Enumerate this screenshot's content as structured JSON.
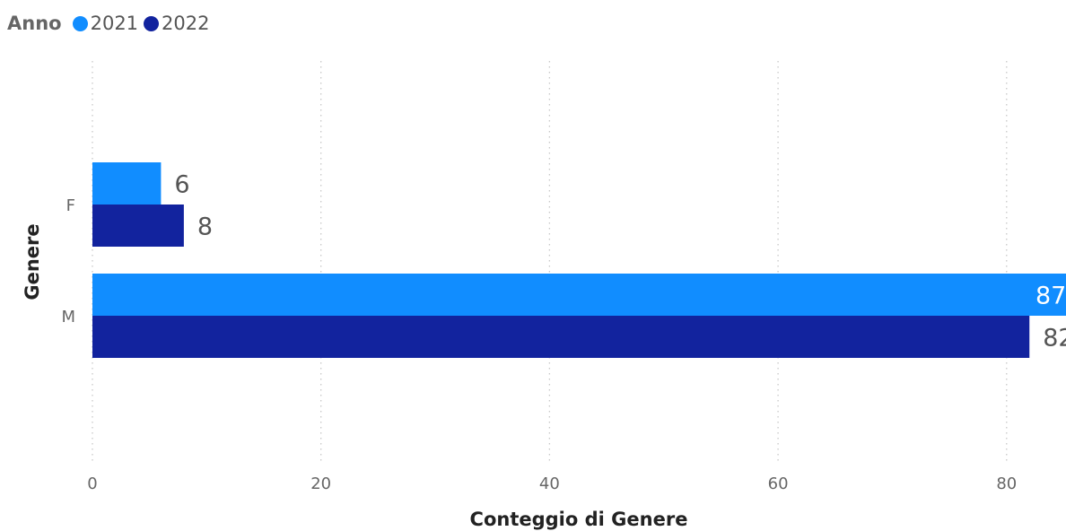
{
  "legend": {
    "title": "Anno",
    "items": [
      {
        "label": "2021",
        "color": "#118DFF"
      },
      {
        "label": "2022",
        "color": "#12239E"
      }
    ]
  },
  "chart_data": {
    "type": "bar",
    "orientation": "horizontal",
    "categories": [
      "F",
      "M"
    ],
    "series": [
      {
        "name": "2021",
        "values": [
          6,
          87
        ],
        "color": "#118DFF"
      },
      {
        "name": "2022",
        "values": [
          8,
          82
        ],
        "color": "#12239E"
      }
    ],
    "xlabel": "Conteggio di Genere",
    "ylabel": "Genere",
    "xlim": [
      0,
      85.2
    ],
    "xticks": [
      0,
      20,
      40,
      60,
      80
    ],
    "xtick_labels": [
      "0",
      "20",
      "40",
      "60",
      "80"
    ],
    "grid": true,
    "data_labels": true,
    "legend_position": "top-left"
  }
}
